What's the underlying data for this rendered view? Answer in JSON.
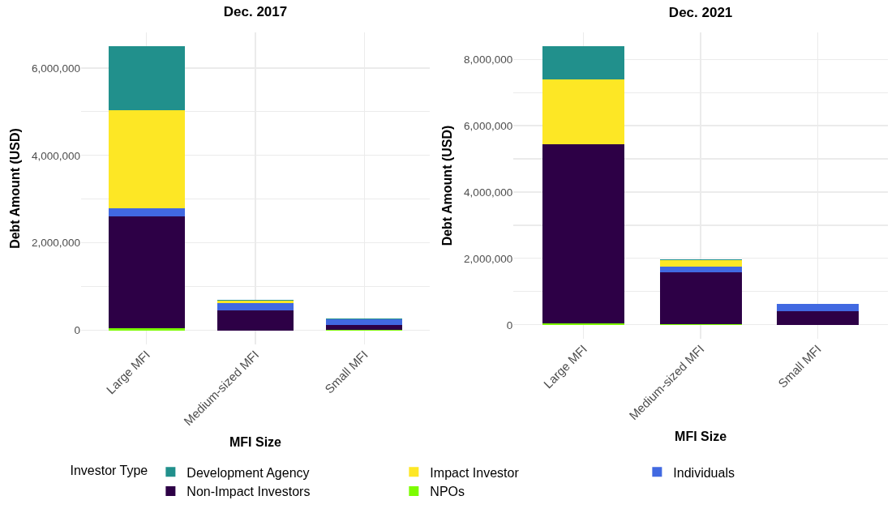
{
  "chart_data": [
    {
      "type": "bar",
      "title": "Dec. 2017",
      "xlabel": "MFI Size",
      "ylabel": "Debt Amount (USD)",
      "stacked": true,
      "grid": true,
      "legend": false,
      "categories": [
        "Large MFI",
        "Medium-sized MFI",
        "Small MFI"
      ],
      "ylim": [
        -324000,
        6814000
      ],
      "yticks": [
        {
          "value": 0,
          "label": "0"
        },
        {
          "value": 1000000,
          "label": null
        },
        {
          "value": 2000000,
          "label": "2,000,000"
        },
        {
          "value": 3000000,
          "label": null
        },
        {
          "value": 4000000,
          "label": "4,000,000"
        },
        {
          "value": 5000000,
          "label": null
        },
        {
          "value": 6000000,
          "label": "6,000,000"
        }
      ],
      "series": [
        {
          "color": "#7cfc00",
          "values": [
            40000,
            0,
            10000
          ]
        },
        {
          "color": "#2d0046",
          "values": [
            2570000,
            460000,
            120000
          ]
        },
        {
          "color": "#4169e1",
          "values": [
            180000,
            160000,
            120000
          ]
        },
        {
          "color": "#fde725",
          "values": [
            2240000,
            60000,
            0
          ]
        },
        {
          "color": "#21908c",
          "values": [
            1460000,
            20000,
            20000
          ]
        }
      ]
    },
    {
      "type": "bar",
      "title": "Dec. 2021",
      "xlabel": "MFI Size",
      "ylabel": "Debt Amount (USD)",
      "stacked": true,
      "grid": true,
      "legend": "bottom",
      "legend_title": "Investor Type",
      "categories": [
        "Large MFI",
        "Medium-sized MFI",
        "Small MFI"
      ],
      "ylim": [
        -420000,
        8810000
      ],
      "yticks": [
        {
          "value": 0,
          "label": "0"
        },
        {
          "value": 1000000,
          "label": null
        },
        {
          "value": 2000000,
          "label": "2,000,000"
        },
        {
          "value": 3000000,
          "label": null
        },
        {
          "value": 4000000,
          "label": "4,000,000"
        },
        {
          "value": 5000000,
          "label": null
        },
        {
          "value": 6000000,
          "label": "6,000,000"
        },
        {
          "value": 7000000,
          "label": null
        },
        {
          "value": 8000000,
          "label": "8,000,000"
        }
      ],
      "series": [
        {
          "name": "NPOs",
          "color": "#7cfc00",
          "values": [
            50000,
            30000,
            0
          ]
        },
        {
          "name": "Non-Impact Investors",
          "color": "#2d0046",
          "values": [
            5400000,
            1550000,
            400000
          ]
        },
        {
          "name": "Individuals",
          "color": "#4169e1",
          "values": [
            0,
            180000,
            240000
          ]
        },
        {
          "name": "Impact Investor",
          "color": "#fde725",
          "values": [
            1940000,
            200000,
            0
          ]
        },
        {
          "name": "Development Agency",
          "color": "#21908c",
          "values": [
            1000000,
            20000,
            0
          ]
        }
      ]
    }
  ]
}
